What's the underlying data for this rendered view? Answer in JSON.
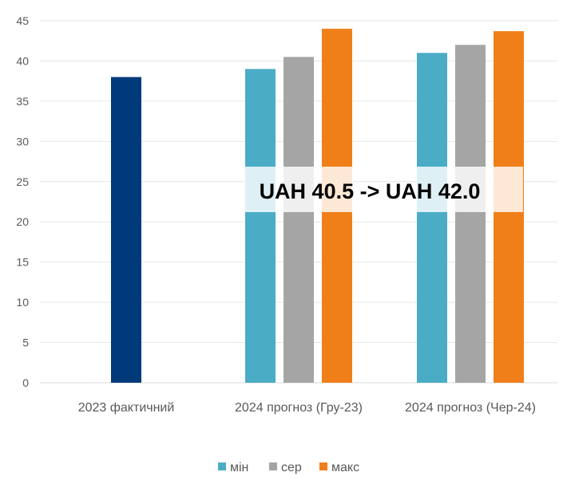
{
  "chart_data": {
    "type": "bar",
    "title": "",
    "xlabel": "",
    "ylabel": "",
    "ylim": [
      0,
      45
    ],
    "yticks": [
      0,
      5,
      10,
      15,
      20,
      25,
      30,
      35,
      40,
      45
    ],
    "grid": true,
    "legend_position": "bottom",
    "categories": [
      "2023 фактичний",
      "2024 прогноз (Гру-23)",
      "2024 прогноз (Чер-24)"
    ],
    "actual": {
      "category": "2023 фактичний",
      "value": 38.0,
      "color": "#003A7A"
    },
    "series": [
      {
        "name": "мін",
        "color": "#4BACC6",
        "values": [
          null,
          39.0,
          41.0
        ]
      },
      {
        "name": "сер",
        "color": "#A5A5A5",
        "values": [
          null,
          40.5,
          42.0
        ]
      },
      {
        "name": "макс",
        "color": "#F07F1A",
        "values": [
          null,
          44.0,
          43.7
        ]
      }
    ],
    "annotation": "UAH 40.5 -> UAH 42.0"
  }
}
